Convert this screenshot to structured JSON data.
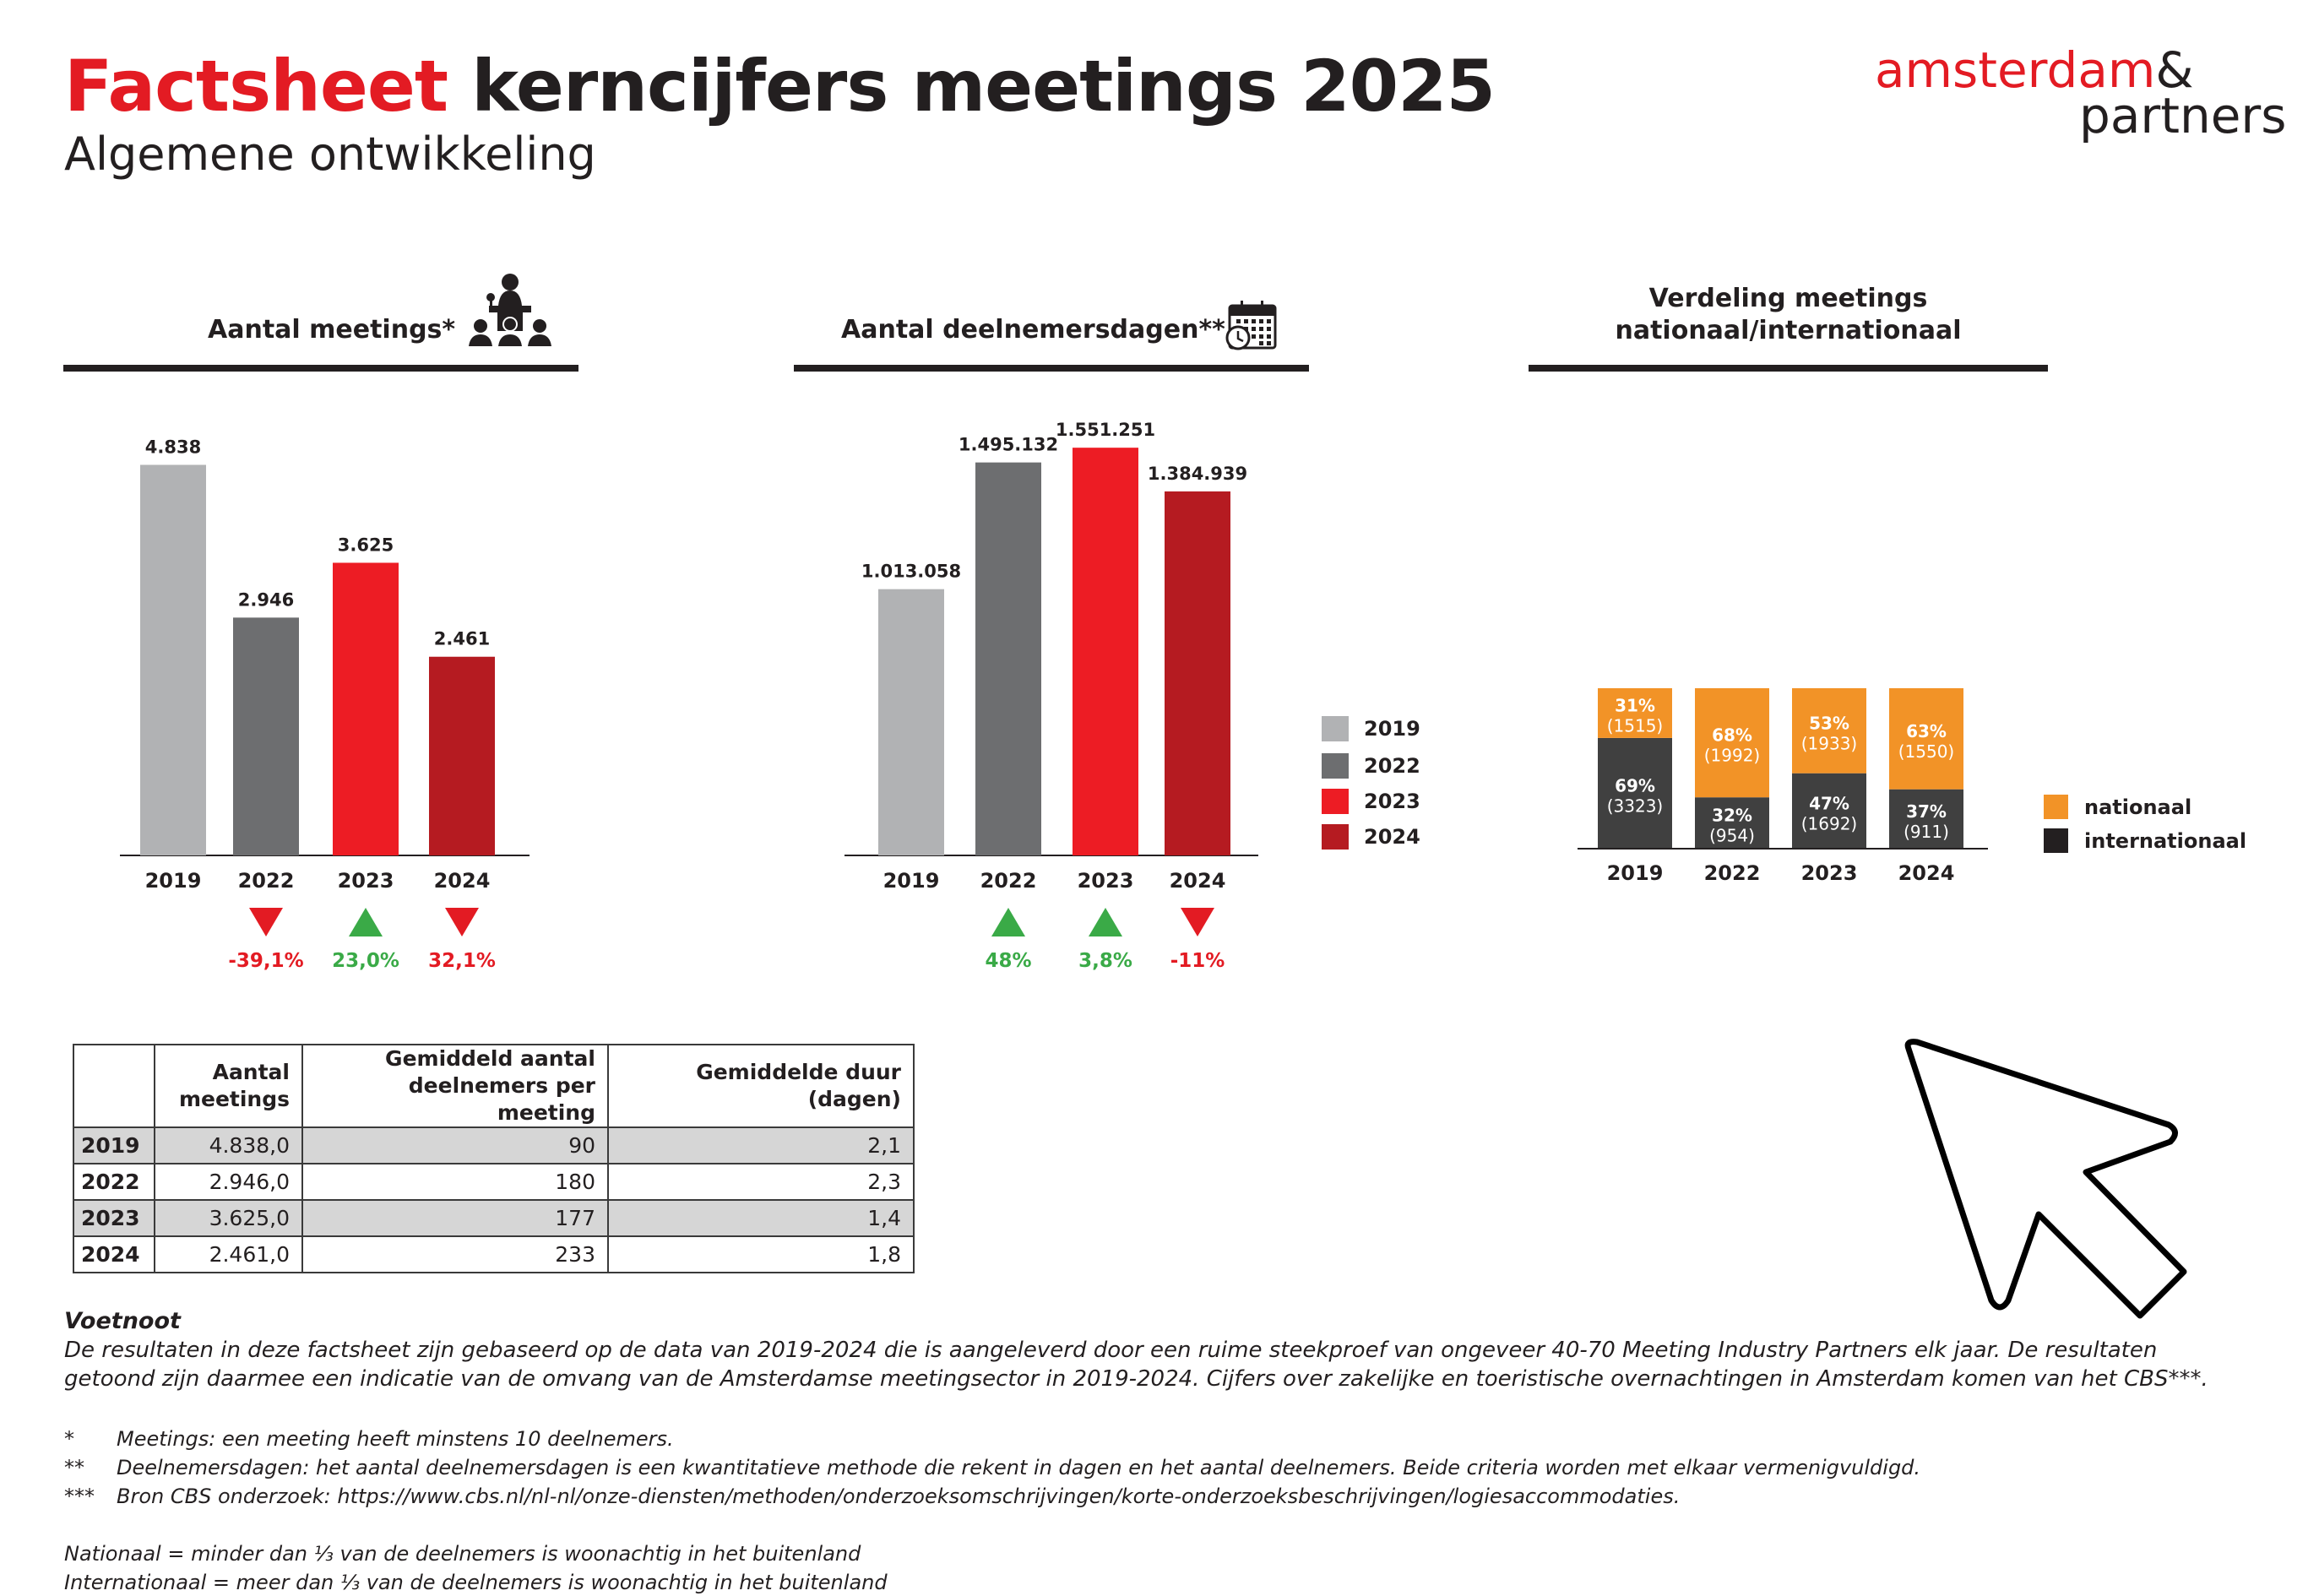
{
  "header": {
    "title_accent": "Factsheet",
    "title_rest": "kerncijfers meetings 2025",
    "subtitle": "Algemene ontwikkeling",
    "logo_line1": "amsterdam",
    "logo_amp": "&",
    "logo_line2": "partners",
    "accent_color": "#e31b23"
  },
  "colors": {
    "y2019": "#b1b2b4",
    "y2022": "#6d6e70",
    "y2023": "#ed1c24",
    "y2024": "#b51b21",
    "nationaal": "#f29327",
    "internationaal": "#404040",
    "up": "#3aaa47",
    "down": "#e31b23"
  },
  "chart_data": [
    {
      "type": "bar",
      "title": "Aantal meetings*",
      "icon": "presenter-audience-icon",
      "categories": [
        "2019",
        "2022",
        "2023",
        "2024"
      ],
      "values": [
        4838,
        2946,
        3625,
        2461
      ],
      "value_labels": [
        "4.838",
        "2.946",
        "3.625",
        "2.461"
      ],
      "changes": [
        null,
        {
          "direction": "down",
          "label": "-39,1%"
        },
        {
          "direction": "up",
          "label": "23,0%"
        },
        {
          "direction": "down",
          "label": "32,1%"
        }
      ],
      "ylim": [
        0,
        5000
      ]
    },
    {
      "type": "bar",
      "title": "Aantal deelnemersdagen**",
      "icon": "calendar-clock-icon",
      "categories": [
        "2019",
        "2022",
        "2023",
        "2024"
      ],
      "values": [
        1013058,
        1495132,
        1551251,
        1384939
      ],
      "value_labels": [
        "1.013.058",
        "1.495.132",
        "1.551.251",
        "1.384.939"
      ],
      "changes": [
        null,
        {
          "direction": "up",
          "label": "48%"
        },
        {
          "direction": "up",
          "label": "3,8%"
        },
        {
          "direction": "down",
          "label": "-11%"
        }
      ],
      "ylim": [
        0,
        1600000
      ],
      "legend": [
        "2019",
        "2022",
        "2023",
        "2024"
      ]
    },
    {
      "type": "bar",
      "stacked": true,
      "title_line1": "Verdeling meetings",
      "title_line2": "nationaal/internationaal",
      "categories": [
        "2019",
        "2022",
        "2023",
        "2024"
      ],
      "series": [
        {
          "name": "internationaal",
          "percent": [
            69,
            32,
            47,
            37
          ],
          "counts": [
            3323,
            954,
            1692,
            911
          ],
          "labels": [
            "69%",
            "32%",
            "47%",
            "37%"
          ],
          "count_labels": [
            "(3323)",
            "(954)",
            "(1692)",
            "(911)"
          ]
        },
        {
          "name": "nationaal",
          "percent": [
            31,
            68,
            53,
            63
          ],
          "counts": [
            1515,
            1992,
            1933,
            1550
          ],
          "labels": [
            "31%",
            "68%",
            "53%",
            "63%"
          ],
          "count_labels": [
            "(1515)",
            "(1992)",
            "(1933)",
            "(1550)"
          ]
        }
      ],
      "legend": [
        "nationaal",
        "internationaal"
      ],
      "ylim": [
        0,
        100
      ]
    }
  ],
  "table": {
    "headers": [
      {
        "line1": "",
        "line2": ""
      },
      {
        "line1": "Aantal",
        "line2": "meetings"
      },
      {
        "line1": "Gemiddeld aantal",
        "line2": "deelnemers per meeting"
      },
      {
        "line1": "Gemiddelde duur",
        "line2": "(dagen)"
      }
    ],
    "rows": [
      {
        "year": "2019",
        "meetings": "4.838,0",
        "avg_participants": "90",
        "avg_duration": "2,1"
      },
      {
        "year": "2022",
        "meetings": "2.946,0",
        "avg_participants": "180",
        "avg_duration": "2,3"
      },
      {
        "year": "2023",
        "meetings": "3.625,0",
        "avg_participants": "177",
        "avg_duration": "1,4"
      },
      {
        "year": "2024",
        "meetings": "2.461,0",
        "avg_participants": "233",
        "avg_duration": "1,8"
      }
    ]
  },
  "footnote": {
    "title": "Voetnoot",
    "para1": "De resultaten in deze factsheet zijn gebaseerd op de data van 2019-2024 die is aangeleverd door een ruime steekproef van ongeveer 40-70 Meeting Industry Partners elk jaar. De resultaten",
    "para2": "getoond zijn daarmee een indicatie van de omvang van de Amsterdamse meetingsector in 2019-2024. Cijfers over zakelijke en toeristische overnachtingen in Amsterdam komen van het CBS***.",
    "notes": [
      {
        "mark": "*",
        "text": "Meetings: een meeting heeft minstens 10 deelnemers."
      },
      {
        "mark": "**",
        "text": "Deelnemersdagen: het aantal deelnemersdagen is een kwantitatieve methode die rekent in dagen en het aantal deelnemers. Beide criteria worden met elkaar vermenigvuldigd."
      },
      {
        "mark": "***",
        "text": "Bron CBS onderzoek: https://www.cbs.nl/nl-nl/onze-diensten/methoden/onderzoeksomschrijvingen/korte-onderzoeksbeschrijvingen/logiesaccommodaties."
      }
    ],
    "def_nationaal": "Nationaal = minder dan ⅓ van de deelnemers is woonachtig in het buitenland",
    "def_internationaal": "Internationaal = meer dan ⅓ van de deelnemers is woonachtig in het buitenland"
  },
  "cursor": {
    "icon": "mouse-pointer-icon"
  }
}
